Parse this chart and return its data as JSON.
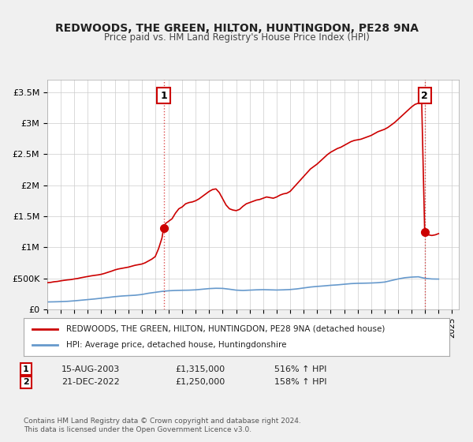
{
  "title": "REDWOODS, THE GREEN, HILTON, HUNTINGDON, PE28 9NA",
  "subtitle": "Price paid vs. HM Land Registry's House Price Index (HPI)",
  "xlabel": "",
  "ylabel": "",
  "ylim": [
    0,
    3700000
  ],
  "xlim_start": 1995.0,
  "xlim_end": 2025.5,
  "bg_color": "#f0f0f0",
  "plot_bg_color": "#ffffff",
  "red_line_color": "#cc0000",
  "blue_line_color": "#6699cc",
  "marker1_date": 2003.625,
  "marker1_value": 1315000,
  "marker1_label": "1",
  "marker2_date": 2022.97,
  "marker2_value": 1250000,
  "marker2_label": "2",
  "legend_label_red": "REDWOODS, THE GREEN, HILTON, HUNTINGDON, PE28 9NA (detached house)",
  "legend_label_blue": "HPI: Average price, detached house, Huntingdonshire",
  "table_row1": [
    "1",
    "15-AUG-2003",
    "£1,315,000",
    "516% ↑ HPI"
  ],
  "table_row2": [
    "2",
    "21-DEC-2022",
    "£1,250,000",
    "158% ↑ HPI"
  ],
  "footer": "Contains HM Land Registry data © Crown copyright and database right 2024.\nThis data is licensed under the Open Government Licence v3.0.",
  "ytick_labels": [
    "£0",
    "£500K",
    "£1M",
    "£1.5M",
    "£2M",
    "£2.5M",
    "£3M",
    "£3.5M"
  ],
  "ytick_values": [
    0,
    500000,
    1000000,
    1500000,
    2000000,
    2500000,
    3000000,
    3500000
  ],
  "red_x": [
    1995.0,
    1995.25,
    1995.5,
    1995.75,
    1996.0,
    1996.25,
    1996.5,
    1996.75,
    1997.0,
    1997.25,
    1997.5,
    1997.75,
    1998.0,
    1998.25,
    1998.5,
    1998.75,
    1999.0,
    1999.25,
    1999.5,
    1999.75,
    2000.0,
    2000.25,
    2000.5,
    2000.75,
    2001.0,
    2001.25,
    2001.5,
    2001.75,
    2002.0,
    2002.25,
    2002.5,
    2002.75,
    2003.0,
    2003.25,
    2003.5,
    2003.625,
    2003.75,
    2004.0,
    2004.25,
    2004.5,
    2004.75,
    2005.0,
    2005.25,
    2005.5,
    2005.75,
    2006.0,
    2006.25,
    2006.5,
    2006.75,
    2007.0,
    2007.25,
    2007.5,
    2007.75,
    2008.0,
    2008.25,
    2008.5,
    2008.75,
    2009.0,
    2009.25,
    2009.5,
    2009.75,
    2010.0,
    2010.25,
    2010.5,
    2010.75,
    2011.0,
    2011.25,
    2011.5,
    2011.75,
    2012.0,
    2012.25,
    2012.5,
    2012.75,
    2013.0,
    2013.25,
    2013.5,
    2013.75,
    2014.0,
    2014.25,
    2014.5,
    2014.75,
    2015.0,
    2015.25,
    2015.5,
    2015.75,
    2016.0,
    2016.25,
    2016.5,
    2016.75,
    2017.0,
    2017.25,
    2017.5,
    2017.75,
    2018.0,
    2018.25,
    2018.5,
    2018.75,
    2019.0,
    2019.25,
    2019.5,
    2019.75,
    2020.0,
    2020.25,
    2020.5,
    2020.75,
    2021.0,
    2021.25,
    2021.5,
    2021.75,
    2022.0,
    2022.25,
    2022.5,
    2022.75,
    2022.97,
    2023.0,
    2023.25,
    2023.5,
    2023.75,
    2024.0
  ],
  "red_y": [
    430000,
    435000,
    445000,
    450000,
    460000,
    468000,
    475000,
    480000,
    490000,
    498000,
    510000,
    520000,
    530000,
    540000,
    548000,
    555000,
    565000,
    580000,
    598000,
    615000,
    635000,
    650000,
    660000,
    670000,
    680000,
    695000,
    710000,
    720000,
    730000,
    750000,
    780000,
    810000,
    850000,
    980000,
    1150000,
    1315000,
    1380000,
    1420000,
    1460000,
    1550000,
    1620000,
    1650000,
    1700000,
    1720000,
    1730000,
    1750000,
    1780000,
    1820000,
    1860000,
    1900000,
    1930000,
    1940000,
    1880000,
    1780000,
    1680000,
    1620000,
    1600000,
    1590000,
    1610000,
    1660000,
    1700000,
    1720000,
    1740000,
    1760000,
    1770000,
    1790000,
    1810000,
    1800000,
    1790000,
    1810000,
    1840000,
    1860000,
    1870000,
    1900000,
    1960000,
    2020000,
    2080000,
    2140000,
    2200000,
    2260000,
    2300000,
    2340000,
    2390000,
    2440000,
    2490000,
    2530000,
    2560000,
    2590000,
    2610000,
    2640000,
    2670000,
    2700000,
    2720000,
    2730000,
    2740000,
    2760000,
    2780000,
    2800000,
    2830000,
    2860000,
    2880000,
    2900000,
    2930000,
    2970000,
    3010000,
    3060000,
    3110000,
    3160000,
    3210000,
    3260000,
    3300000,
    3320000,
    3330000,
    1250000,
    1220000,
    1200000,
    1190000,
    1200000,
    1220000
  ],
  "blue_x": [
    1995.0,
    1995.5,
    1996.0,
    1996.5,
    1997.0,
    1997.5,
    1998.0,
    1998.5,
    1999.0,
    1999.5,
    2000.0,
    2000.5,
    2001.0,
    2001.5,
    2002.0,
    2002.5,
    2003.0,
    2003.5,
    2004.0,
    2004.5,
    2005.0,
    2005.5,
    2006.0,
    2006.5,
    2007.0,
    2007.5,
    2008.0,
    2008.5,
    2009.0,
    2009.5,
    2010.0,
    2010.5,
    2011.0,
    2011.5,
    2012.0,
    2012.5,
    2013.0,
    2013.5,
    2014.0,
    2014.5,
    2015.0,
    2015.5,
    2016.0,
    2016.5,
    2017.0,
    2017.5,
    2018.0,
    2018.5,
    2019.0,
    2019.5,
    2020.0,
    2020.5,
    2021.0,
    2021.5,
    2022.0,
    2022.5,
    2023.0,
    2023.5,
    2024.0
  ],
  "blue_y": [
    120000,
    122000,
    125000,
    130000,
    138000,
    148000,
    158000,
    168000,
    180000,
    192000,
    205000,
    215000,
    222000,
    228000,
    240000,
    260000,
    275000,
    290000,
    300000,
    305000,
    308000,
    310000,
    315000,
    325000,
    335000,
    340000,
    338000,
    325000,
    310000,
    305000,
    310000,
    315000,
    318000,
    315000,
    312000,
    315000,
    320000,
    330000,
    345000,
    360000,
    370000,
    378000,
    388000,
    395000,
    405000,
    415000,
    420000,
    422000,
    425000,
    430000,
    440000,
    465000,
    490000,
    510000,
    520000,
    525000,
    500000,
    490000,
    488000
  ]
}
